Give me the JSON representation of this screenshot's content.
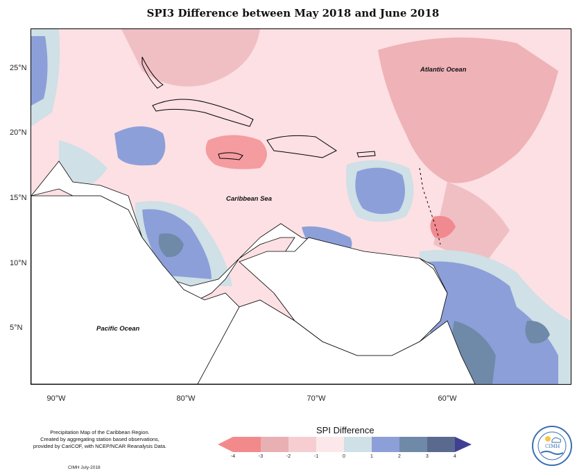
{
  "title": "SPI3 Difference between May 2018 and June 2018",
  "lat_labels": [
    "25°N",
    "20°N",
    "15°N",
    "10°N",
    "5°N"
  ],
  "lon_labels": [
    "90°W",
    "80°W",
    "70°W",
    "60°W"
  ],
  "ocean_labels": {
    "atlantic": "Atlantic Ocean",
    "caribbean": "Caribbean Sea",
    "pacific": "Pacific Ocean"
  },
  "notes": {
    "line1": "Precipitation Map of the Caribbean Region.",
    "line2": "Created by aggregating station based observations,",
    "line3": "provided by CariCOF, with NCEP/NCAR Reanalysis Data."
  },
  "credit": "CIMH July-2018",
  "logo_text": "CIMH",
  "legend": {
    "title": "SPI Difference",
    "ticks": [
      "-4",
      "-3",
      "-2",
      "-1",
      "0",
      "1",
      "2",
      "3",
      "4"
    ],
    "colors": [
      "#f28a8c",
      "#e9b0b3",
      "#f6ced2",
      "#fce8ea",
      "#cfe0e6",
      "#8c9fd9",
      "#6f8aa8",
      "#5a6a8f"
    ],
    "end_low": "#f28a8c",
    "end_high": "#3f3f93"
  }
}
